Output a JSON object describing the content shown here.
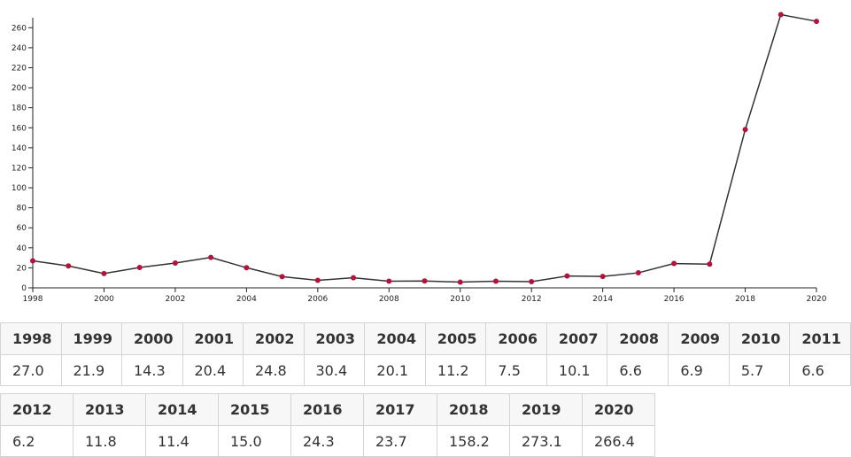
{
  "chart_data": {
    "type": "line",
    "title": "",
    "xlabel": "",
    "ylabel": "",
    "x": [
      1998,
      1999,
      2000,
      2001,
      2002,
      2003,
      2004,
      2005,
      2006,
      2007,
      2008,
      2009,
      2010,
      2011,
      2012,
      2013,
      2014,
      2015,
      2016,
      2017,
      2018,
      2019,
      2020
    ],
    "values": [
      27.0,
      21.9,
      14.3,
      20.4,
      24.8,
      30.4,
      20.1,
      11.2,
      7.5,
      10.1,
      6.6,
      6.9,
      5.7,
      6.6,
      6.2,
      11.8,
      11.4,
      15.0,
      24.3,
      23.7,
      158.2,
      273.1,
      266.4
    ],
    "value_labels": [
      "27.0",
      "21.9",
      "14.3",
      "20.4",
      "24.8",
      "30.4",
      "20.1",
      "11.2",
      "7.5",
      "10.1",
      "6.6",
      "6.9",
      "5.7",
      "6.6",
      "6.2",
      "11.8",
      "11.4",
      "15.0",
      "24.3",
      "23.7",
      "158.2",
      "273.1",
      "266.4"
    ],
    "xlim": [
      1998,
      2020
    ],
    "ylim": [
      0,
      270
    ],
    "xticks": [
      "1998",
      "2000",
      "2002",
      "2004",
      "2006",
      "2008",
      "2010",
      "2012",
      "2014",
      "2016",
      "2018",
      "2020"
    ],
    "yticks": [
      "0",
      "20",
      "40",
      "60",
      "80",
      "100",
      "120",
      "140",
      "160",
      "180",
      "200",
      "220",
      "240",
      "260"
    ],
    "grid": false,
    "line_color": "#333333",
    "marker_color": "#b5123b"
  }
}
